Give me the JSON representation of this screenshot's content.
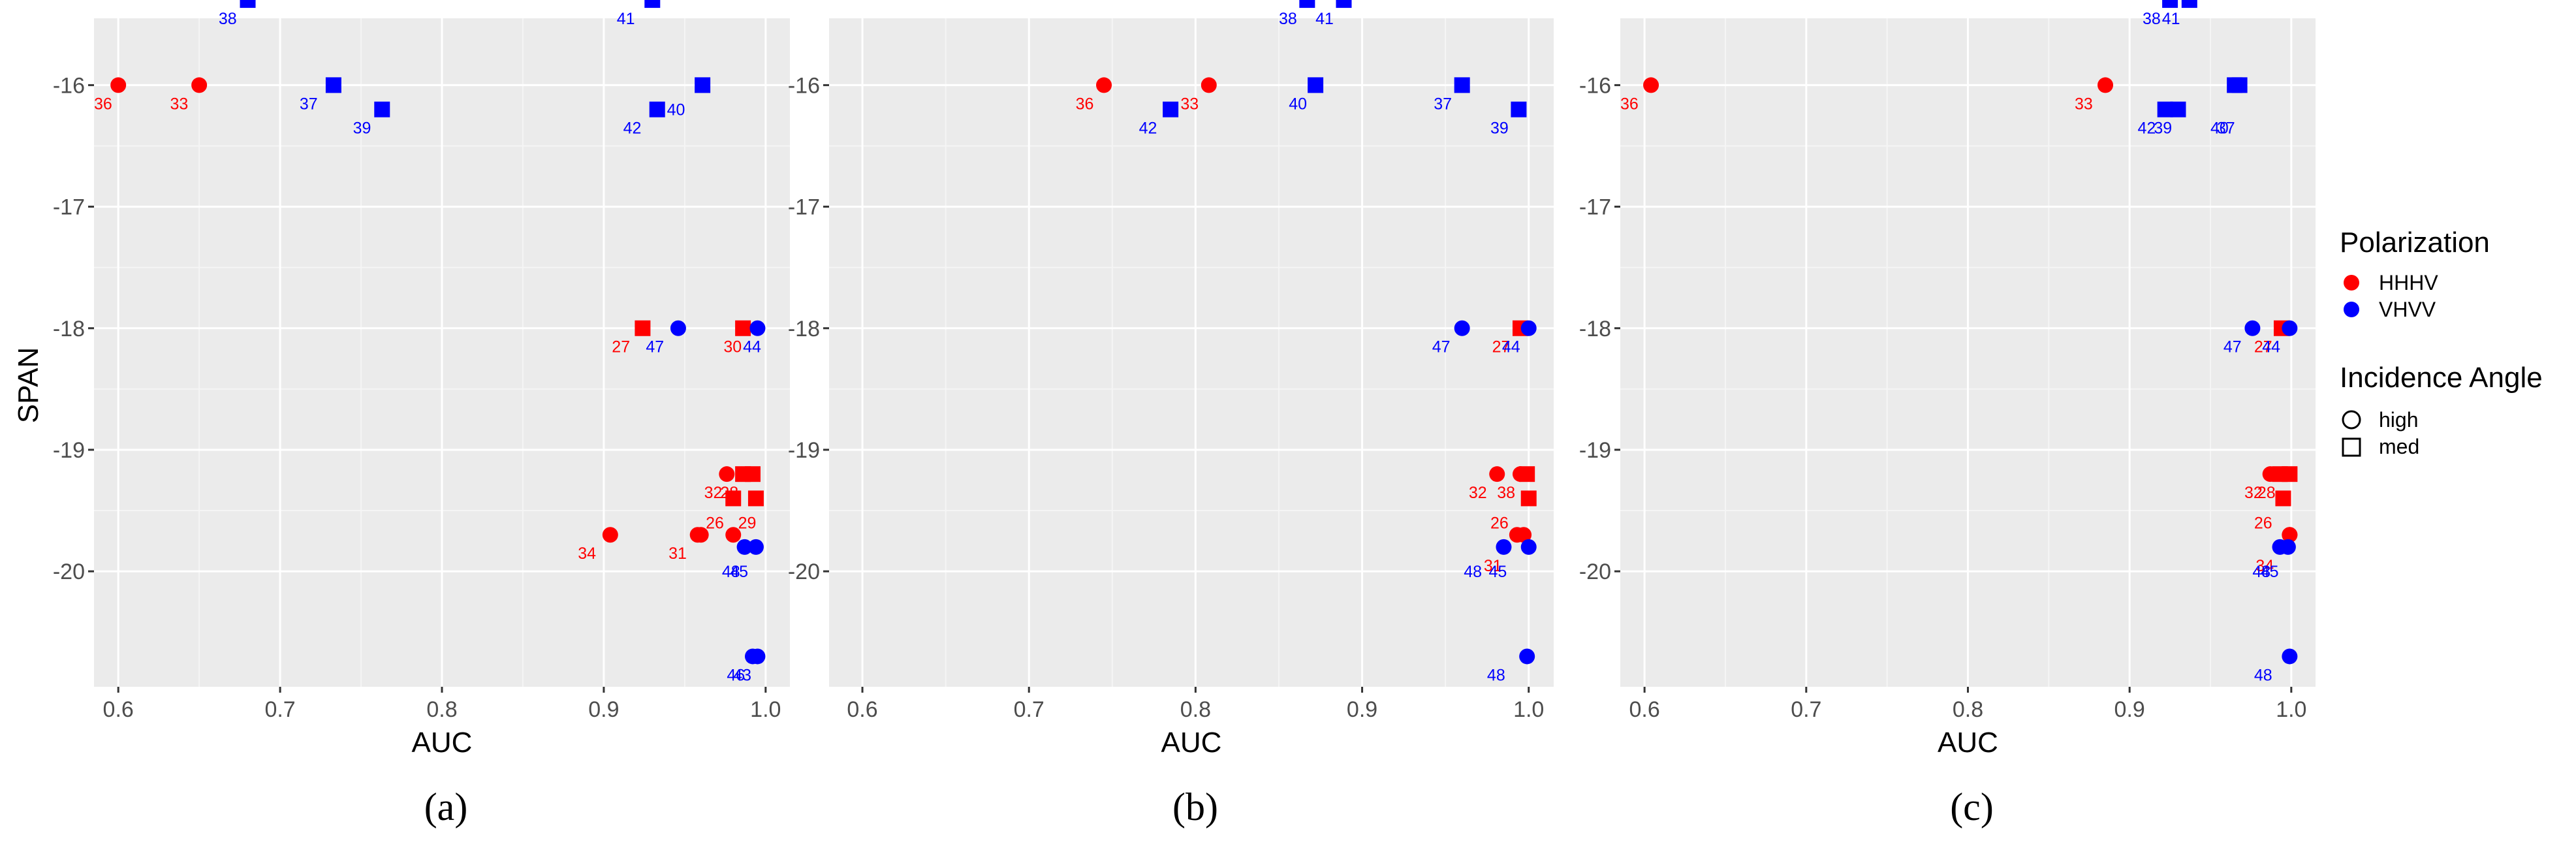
{
  "figure": {
    "y_label": "SPAN",
    "x_label": "AUC",
    "legend": {
      "polarization_title": "Polarization",
      "polarization_items": [
        {
          "label": "HHHV",
          "color": "#ff0000"
        },
        {
          "label": "VHVV",
          "color": "#0000ff"
        }
      ],
      "angle_title": "Incidence Angle",
      "angle_items": [
        {
          "label": "high",
          "shape": "circle"
        },
        {
          "label": "med",
          "shape": "square"
        }
      ]
    }
  },
  "chart_data": [
    {
      "type": "scatter",
      "caption": "(a)",
      "xlabel": "AUC",
      "ylabel": "SPAN",
      "xlim": [
        0.585,
        1.015
      ],
      "ylim": [
        -20.95,
        -15.45
      ],
      "xticks": [
        0.6,
        0.7,
        0.8,
        0.9,
        1.0
      ],
      "xtick_labels": [
        "0.6",
        "0.7",
        "0.8",
        "0.9",
        "1.0"
      ],
      "yticks": [
        -16,
        -17,
        -18,
        -19,
        -20
      ],
      "ytick_labels": [
        "-16",
        "-17",
        "-18",
        "-19",
        "-20"
      ],
      "points": [
        {
          "x": 0.6,
          "y": -16.0,
          "pol": "HHHV",
          "shape": "circle",
          "label": "36",
          "lx": 0.585,
          "ly": -16.15
        },
        {
          "x": 0.65,
          "y": -16.0,
          "pol": "HHHV",
          "shape": "circle",
          "label": "33",
          "lx": 0.632,
          "ly": -16.15
        },
        {
          "x": 0.68,
          "y": -15.3,
          "pol": "VHVV",
          "shape": "square",
          "label": "38",
          "lx": 0.662,
          "ly": -15.45
        },
        {
          "x": 0.733,
          "y": -16.0,
          "pol": "VHVV",
          "shape": "square",
          "label": "37",
          "lx": 0.712,
          "ly": -16.15
        },
        {
          "x": 0.763,
          "y": -16.2,
          "pol": "VHVV",
          "shape": "square",
          "label": "39",
          "lx": 0.745,
          "ly": -16.35
        },
        {
          "x": 0.93,
          "y": -15.3,
          "pol": "VHVV",
          "shape": "square",
          "label": "41",
          "lx": 0.908,
          "ly": -15.45
        },
        {
          "x": 0.933,
          "y": -16.2,
          "pol": "VHVV",
          "shape": "square",
          "label": "40",
          "lx": 0.939,
          "ly": -16.2
        },
        {
          "x": 0.961,
          "y": -16.0,
          "pol": "VHVV",
          "shape": "square",
          "label": "42",
          "lx": 0.912,
          "ly": -16.35
        },
        {
          "x": 0.924,
          "y": -18.0,
          "pol": "HHHV",
          "shape": "square",
          "label": "27",
          "lx": 0.905,
          "ly": -18.15
        },
        {
          "x": 0.946,
          "y": -18.0,
          "pol": "VHVV",
          "shape": "circle",
          "label": "47",
          "lx": 0.926,
          "ly": -18.15
        },
        {
          "x": 0.986,
          "y": -18.0,
          "pol": "HHHV",
          "shape": "square",
          "label": "30",
          "lx": 0.974,
          "ly": -18.15
        },
        {
          "x": 0.995,
          "y": -18.0,
          "pol": "VHVV",
          "shape": "circle",
          "label": "44",
          "lx": 0.986,
          "ly": -18.15
        },
        {
          "x": 0.976,
          "y": -19.2,
          "pol": "HHHV",
          "shape": "circle",
          "label": "32",
          "lx": 0.962,
          "ly": -19.35
        },
        {
          "x": 0.98,
          "y": -19.4,
          "pol": "HHHV",
          "shape": "square",
          "label": "28",
          "lx": 0.972,
          "ly": -19.35
        },
        {
          "x": 0.986,
          "y": -19.2,
          "pol": "HHHV",
          "shape": "square",
          "label": "",
          "lx": 0.0,
          "ly": 0.0
        },
        {
          "x": 0.992,
          "y": -19.2,
          "pol": "HHHV",
          "shape": "square",
          "label": "",
          "lx": 0.0,
          "ly": 0.0
        },
        {
          "x": 0.994,
          "y": -19.4,
          "pol": "HHHV",
          "shape": "square",
          "label": "",
          "lx": 0.0,
          "ly": 0.0
        },
        {
          "x": 0.96,
          "y": -19.7,
          "pol": "HHHV",
          "shape": "circle",
          "label": "26",
          "lx": 0.963,
          "ly": -19.6
        },
        {
          "x": 0.98,
          "y": -19.7,
          "pol": "HHHV",
          "shape": "circle",
          "label": "29",
          "lx": 0.983,
          "ly": -19.6
        },
        {
          "x": 0.904,
          "y": -19.7,
          "pol": "HHHV",
          "shape": "circle",
          "label": "34",
          "lx": 0.884,
          "ly": -19.85
        },
        {
          "x": 0.958,
          "y": -19.7,
          "pol": "HHHV",
          "shape": "circle",
          "label": "31",
          "lx": 0.94,
          "ly": -19.85
        },
        {
          "x": 0.987,
          "y": -19.8,
          "pol": "VHVV",
          "shape": "circle",
          "label": "45",
          "lx": 0.978,
          "ly": -20.0
        },
        {
          "x": 0.994,
          "y": -19.8,
          "pol": "VHVV",
          "shape": "circle",
          "label": "48",
          "lx": 0.973,
          "ly": -20.0
        },
        {
          "x": 0.992,
          "y": -20.7,
          "pol": "VHVV",
          "shape": "circle",
          "label": "46",
          "lx": 0.976,
          "ly": -20.85
        },
        {
          "x": 0.995,
          "y": -20.7,
          "pol": "VHVV",
          "shape": "circle",
          "label": "43",
          "lx": 0.98,
          "ly": -20.85
        }
      ]
    },
    {
      "type": "scatter",
      "caption": "(b)",
      "xlabel": "AUC",
      "ylabel": "SPAN",
      "xlim": [
        0.58,
        1.015
      ],
      "ylim": [
        -20.95,
        -15.45
      ],
      "xticks": [
        0.6,
        0.7,
        0.8,
        0.9,
        1.0
      ],
      "xtick_labels": [
        "0.6",
        "0.7",
        "0.8",
        "0.9",
        "1.0"
      ],
      "yticks": [
        -16,
        -17,
        -18,
        -19,
        -20
      ],
      "ytick_labels": [
        "-16",
        "-17",
        "-18",
        "-19",
        "-20"
      ],
      "points": [
        {
          "x": 0.745,
          "y": -16.0,
          "pol": "HHHV",
          "shape": "circle",
          "label": "36",
          "lx": 0.728,
          "ly": -16.15
        },
        {
          "x": 0.808,
          "y": -16.0,
          "pol": "HHHV",
          "shape": "circle",
          "label": "33",
          "lx": 0.791,
          "ly": -16.15
        },
        {
          "x": 0.785,
          "y": -16.2,
          "pol": "VHVV",
          "shape": "square",
          "label": "42",
          "lx": 0.766,
          "ly": -16.35
        },
        {
          "x": 0.867,
          "y": -15.3,
          "pol": "VHVV",
          "shape": "square",
          "label": "38",
          "lx": 0.85,
          "ly": -15.45
        },
        {
          "x": 0.889,
          "y": -15.3,
          "pol": "VHVV",
          "shape": "square",
          "label": "41",
          "lx": 0.872,
          "ly": -15.45
        },
        {
          "x": 0.872,
          "y": -16.0,
          "pol": "VHVV",
          "shape": "square",
          "label": "40",
          "lx": 0.856,
          "ly": -16.15
        },
        {
          "x": 0.96,
          "y": -16.0,
          "pol": "VHVV",
          "shape": "square",
          "label": "37",
          "lx": 0.943,
          "ly": -16.15
        },
        {
          "x": 0.994,
          "y": -16.2,
          "pol": "VHVV",
          "shape": "square",
          "label": "39",
          "lx": 0.977,
          "ly": -16.35
        },
        {
          "x": 0.96,
          "y": -18.0,
          "pol": "VHVV",
          "shape": "circle",
          "label": "47",
          "lx": 0.942,
          "ly": -18.15
        },
        {
          "x": 0.995,
          "y": -18.0,
          "pol": "HHHV",
          "shape": "square",
          "label": "27",
          "lx": 0.978,
          "ly": -18.15
        },
        {
          "x": 1.0,
          "y": -18.0,
          "pol": "VHVV",
          "shape": "circle",
          "label": "44",
          "lx": 0.984,
          "ly": -18.15
        },
        {
          "x": 0.981,
          "y": -19.2,
          "pol": "HHHV",
          "shape": "circle",
          "label": "32",
          "lx": 0.964,
          "ly": -19.35
        },
        {
          "x": 0.995,
          "y": -19.2,
          "pol": "HHHV",
          "shape": "circle",
          "label": "38",
          "lx": 0.981,
          "ly": -19.35
        },
        {
          "x": 0.999,
          "y": -19.2,
          "pol": "HHHV",
          "shape": "square",
          "label": "",
          "lx": 0.0,
          "ly": 0.0
        },
        {
          "x": 1.0,
          "y": -19.4,
          "pol": "HHHV",
          "shape": "square",
          "label": "",
          "lx": 0.0,
          "ly": 0.0
        },
        {
          "x": 0.993,
          "y": -19.7,
          "pol": "HHHV",
          "shape": "circle",
          "label": "26",
          "lx": 0.977,
          "ly": -19.6
        },
        {
          "x": 0.997,
          "y": -19.7,
          "pol": "HHHV",
          "shape": "circle",
          "label": "31",
          "lx": 0.973,
          "ly": -19.95
        },
        {
          "x": 0.985,
          "y": -19.8,
          "pol": "VHVV",
          "shape": "circle",
          "label": "48",
          "lx": 0.961,
          "ly": -20.0
        },
        {
          "x": 1.0,
          "y": -19.8,
          "pol": "VHVV",
          "shape": "circle",
          "label": "45",
          "lx": 0.976,
          "ly": -20.0
        },
        {
          "x": 0.999,
          "y": -20.7,
          "pol": "VHVV",
          "shape": "circle",
          "label": "48",
          "lx": 0.975,
          "ly": -20.85
        }
      ]
    },
    {
      "type": "scatter",
      "caption": "(c)",
      "xlabel": "AUC",
      "ylabel": "SPAN",
      "xlim": [
        0.585,
        1.015
      ],
      "ylim": [
        -20.95,
        -15.45
      ],
      "xticks": [
        0.6,
        0.7,
        0.8,
        0.9,
        1.0
      ],
      "xtick_labels": [
        "0.6",
        "0.7",
        "0.8",
        "0.9",
        "1.0"
      ],
      "yticks": [
        -16,
        -17,
        -18,
        -19,
        -20
      ],
      "ytick_labels": [
        "-16",
        "-17",
        "-18",
        "-19",
        "-20"
      ],
      "points": [
        {
          "x": 0.604,
          "y": -16.0,
          "pol": "HHHV",
          "shape": "circle",
          "label": "36",
          "lx": 0.585,
          "ly": -16.15
        },
        {
          "x": 0.885,
          "y": -16.0,
          "pol": "HHHV",
          "shape": "circle",
          "label": "33",
          "lx": 0.866,
          "ly": -16.15
        },
        {
          "x": 0.925,
          "y": -15.3,
          "pol": "VHVV",
          "shape": "square",
          "label": "38",
          "lx": 0.908,
          "ly": -15.45
        },
        {
          "x": 0.937,
          "y": -15.3,
          "pol": "VHVV",
          "shape": "square",
          "label": "41",
          "lx": 0.92,
          "ly": -15.45
        },
        {
          "x": 0.922,
          "y": -16.2,
          "pol": "VHVV",
          "shape": "square",
          "label": "42",
          "lx": 0.905,
          "ly": -16.35
        },
        {
          "x": 0.93,
          "y": -16.2,
          "pol": "VHVV",
          "shape": "square",
          "label": "39",
          "lx": 0.915,
          "ly": -16.35
        },
        {
          "x": 0.965,
          "y": -16.0,
          "pol": "VHVV",
          "shape": "square",
          "label": "40",
          "lx": 0.95,
          "ly": -16.35
        },
        {
          "x": 0.968,
          "y": -16.0,
          "pol": "VHVV",
          "shape": "square",
          "label": "37",
          "lx": 0.954,
          "ly": -16.35
        },
        {
          "x": 0.976,
          "y": -18.0,
          "pol": "VHVV",
          "shape": "circle",
          "label": "47",
          "lx": 0.958,
          "ly": -18.15
        },
        {
          "x": 0.994,
          "y": -18.0,
          "pol": "HHHV",
          "shape": "square",
          "label": "27",
          "lx": 0.977,
          "ly": -18.15
        },
        {
          "x": 0.999,
          "y": -18.0,
          "pol": "VHVV",
          "shape": "circle",
          "label": "44",
          "lx": 0.982,
          "ly": -18.15
        },
        {
          "x": 0.987,
          "y": -19.2,
          "pol": "HHHV",
          "shape": "circle",
          "label": "32",
          "lx": 0.971,
          "ly": -19.35
        },
        {
          "x": 0.993,
          "y": -19.2,
          "pol": "HHHV",
          "shape": "square",
          "label": "28",
          "lx": 0.979,
          "ly": -19.35
        },
        {
          "x": 0.999,
          "y": -19.2,
          "pol": "HHHV",
          "shape": "square",
          "label": "",
          "lx": 0.0,
          "ly": 0.0
        },
        {
          "x": 0.995,
          "y": -19.4,
          "pol": "HHHV",
          "shape": "square",
          "label": "",
          "lx": 0.0,
          "ly": 0.0
        },
        {
          "x": 0.999,
          "y": -19.7,
          "pol": "HHHV",
          "shape": "circle",
          "label": "26",
          "lx": 0.977,
          "ly": -19.6
        },
        {
          "x": 0.999,
          "y": -19.7,
          "pol": "HHHV",
          "shape": "circle",
          "label": "34",
          "lx": 0.978,
          "ly": -19.95
        },
        {
          "x": 0.993,
          "y": -19.8,
          "pol": "VHVV",
          "shape": "circle",
          "label": "48",
          "lx": 0.976,
          "ly": -20.0
        },
        {
          "x": 0.998,
          "y": -19.8,
          "pol": "VHVV",
          "shape": "circle",
          "label": "45",
          "lx": 0.981,
          "ly": -20.0
        },
        {
          "x": 0.999,
          "y": -20.7,
          "pol": "VHVV",
          "shape": "circle",
          "label": "48",
          "lx": 0.977,
          "ly": -20.85
        }
      ]
    }
  ]
}
